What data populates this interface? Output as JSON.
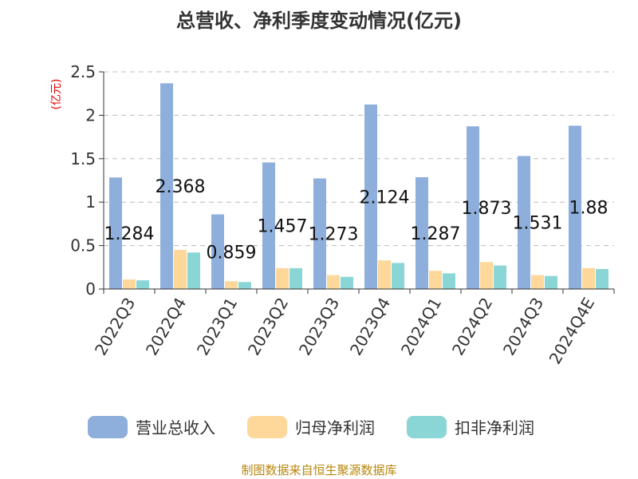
{
  "chart_data": {
    "type": "bar",
    "title": "总营收、净利季度变动情况(亿元)",
    "ylabel": "(亿元)",
    "ylim": [
      0,
      2.5
    ],
    "yticks": [
      "0",
      "0.5",
      "1",
      "1.5",
      "2",
      "2.5"
    ],
    "categories": [
      "2022Q3",
      "2022Q4",
      "2023Q1",
      "2023Q2",
      "2023Q3",
      "2023Q4",
      "2024Q1",
      "2024Q2",
      "2024Q3",
      "2024Q4E"
    ],
    "series": [
      {
        "name": "营业总收入",
        "color": "#8eaedc",
        "values": [
          1.284,
          2.368,
          0.859,
          1.457,
          1.273,
          2.124,
          1.287,
          1.873,
          1.531,
          1.88
        ]
      },
      {
        "name": "归母净利润",
        "color": "#fdd89a",
        "values": [
          0.11,
          0.45,
          0.09,
          0.24,
          0.16,
          0.33,
          0.21,
          0.31,
          0.16,
          0.24
        ]
      },
      {
        "name": "扣非净利润",
        "color": "#8ad6d6",
        "values": [
          0.1,
          0.42,
          0.08,
          0.24,
          0.14,
          0.3,
          0.18,
          0.27,
          0.15,
          0.23
        ]
      }
    ],
    "data_labels": [
      "1.284",
      "2.368",
      "0.859",
      "1.457",
      "1.273",
      "2.124",
      "1.287",
      "1.873",
      "1.531",
      "1.88"
    ],
    "grid": true,
    "legend": "bottom"
  },
  "source": "制图数据来自恒生聚源数据库"
}
